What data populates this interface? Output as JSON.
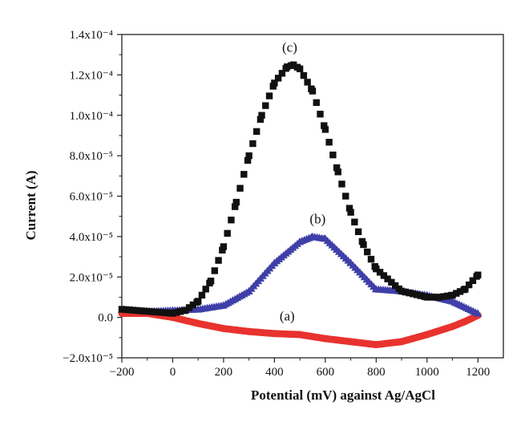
{
  "chart_data": {
    "type": "scatter",
    "title": "",
    "xlabel": "Potential (mV) against Ag/AgCl",
    "ylabel": "Current (A)",
    "xlim": [
      -200,
      1300
    ],
    "ylim": [
      -2e-05,
      0.00014
    ],
    "xticks": [
      -200,
      0,
      200,
      400,
      600,
      800,
      1000,
      1200
    ],
    "xtick_labels": [
      "−200",
      "0",
      "200",
      "400",
      "600",
      "800",
      "1000",
      "1200"
    ],
    "yticks": [
      -2e-05,
      0,
      2e-05,
      4e-05,
      6e-05,
      8e-05,
      0.0001,
      0.00012,
      0.00014
    ],
    "ytick_labels": [
      "−2.0x10⁻⁵",
      "0.0",
      "2.0x10⁻⁵",
      "4.0x10⁻⁵",
      "6.0x10⁻⁵",
      "8.0x10⁻⁵",
      "1.0x10⁻⁴",
      "1.2x10⁻⁴",
      "1.4x10⁻⁴"
    ],
    "grid": false,
    "series": [
      {
        "name": "(a)",
        "marker": "circle",
        "color": "#e8322e",
        "x": [
          -200,
          -100,
          0,
          100,
          200,
          300,
          400,
          500,
          600,
          700,
          800,
          900,
          1000,
          1100,
          1150,
          1200
        ],
        "y": [
          2e-06,
          2e-06,
          0,
          -3e-06,
          -5.5e-06,
          -7e-06,
          -8e-06,
          -8.5e-06,
          -1.05e-05,
          -1.2e-05,
          -1.35e-05,
          -1.2e-05,
          -8.5e-06,
          -4.5e-06,
          -2e-06,
          1e-06
        ]
      },
      {
        "name": "(b)",
        "marker": "triangle",
        "color": "#3f3fa8",
        "x": [
          -200,
          -100,
          0,
          100,
          200,
          300,
          400,
          500,
          550,
          600,
          700,
          800,
          900,
          1000,
          1100,
          1200
        ],
        "y": [
          4e-06,
          3e-06,
          3.5e-06,
          4e-06,
          6e-06,
          1.3e-05,
          2.7e-05,
          3.75e-05,
          4e-05,
          3.9e-05,
          2.7e-05,
          1.4e-05,
          1.3e-05,
          1.1e-05,
          8e-06,
          2e-06
        ]
      },
      {
        "name": "(c)",
        "marker": "square",
        "color": "#111111",
        "x": [
          -200,
          -100,
          0,
          50,
          100,
          150,
          200,
          250,
          300,
          350,
          400,
          450,
          475,
          500,
          550,
          600,
          650,
          700,
          750,
          800,
          900,
          1000,
          1050,
          1100,
          1150,
          1200
        ],
        "y": [
          4e-06,
          3e-06,
          2e-06,
          3.5e-06,
          8e-06,
          1.8e-05,
          3.5e-05,
          5.7e-05,
          8e-05,
          0.0001,
          0.000116,
          0.000124,
          0.000125,
          0.000123,
          0.000112,
          9.3e-05,
          7.2e-05,
          5.2e-05,
          3.6e-05,
          2.4e-05,
          1.3e-05,
          1e-05,
          1e-05,
          1.1e-05,
          1.4e-05,
          2.1e-05
        ]
      }
    ]
  }
}
